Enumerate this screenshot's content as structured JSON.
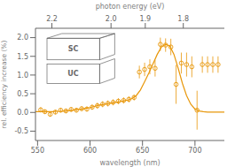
{
  "chart_data": {
    "type": "scatter",
    "xlabel": "wavelength (nm)",
    "ylabel": "rel. efficiency increase (%)",
    "x2label": "photon energy (eV)",
    "annotations": [
      "SC",
      "UC"
    ],
    "xlim": [
      548,
      728
    ],
    "xticks": [
      550,
      600,
      650,
      700
    ],
    "x2ticks": [
      2.2,
      {
        "value": 2.0,
        "label": "2.0"
      },
      1.9,
      1.8
    ],
    "ylim": [
      -0.75,
      2.25
    ],
    "yticks": [
      -0.5,
      {
        "value": 0.0,
        "label": "0.0"
      },
      0.5,
      {
        "value": 1.0,
        "label": "1.0"
      },
      1.5,
      {
        "value": 2.0,
        "label": "2.0"
      }
    ],
    "grid": false,
    "series": [
      {
        "type": "line",
        "color": "#e8970a",
        "x": [
          548,
          552,
          556,
          560,
          564,
          568,
          572,
          576,
          580,
          584,
          588,
          592,
          596,
          600,
          604,
          608,
          612,
          616,
          620,
          624,
          628,
          632,
          636,
          640,
          644,
          648,
          652,
          656,
          660,
          664,
          668,
          672,
          676,
          680,
          684,
          688,
          692,
          696,
          700,
          704,
          708,
          712,
          716,
          720,
          724,
          728
        ],
        "values": [
          0.02,
          0.02,
          0.02,
          0.02,
          0.02,
          0.03,
          0.03,
          0.04,
          0.05,
          0.06,
          0.08,
          0.09,
          0.11,
          0.13,
          0.16,
          0.19,
          0.21,
          0.23,
          0.25,
          0.27,
          0.29,
          0.31,
          0.33,
          0.37,
          0.45,
          0.6,
          0.82,
          1.05,
          1.3,
          1.55,
          1.75,
          1.82,
          1.78,
          1.55,
          1.18,
          0.78,
          0.45,
          0.22,
          0.09,
          0.04,
          0.02,
          0.01,
          0.01,
          0.01,
          0.01,
          0.01
        ]
      },
      {
        "type": "scatter",
        "color": "#e8970a",
        "marker": "circle",
        "x": [
          553,
          557,
          562,
          567,
          572,
          577,
          582,
          587,
          592,
          597,
          602,
          607,
          612,
          617,
          622,
          627,
          632,
          637,
          642,
          647,
          652,
          657,
          662,
          667,
          672,
          677,
          682,
          687,
          692,
          697,
          702,
          707,
          712,
          717,
          722
        ],
        "values": [
          0.07,
          0.02,
          -0.05,
          0.01,
          0.06,
          0.04,
          0.08,
          0.06,
          0.1,
          0.09,
          0.14,
          0.18,
          0.22,
          0.24,
          0.27,
          0.3,
          0.32,
          0.35,
          0.4,
          1.08,
          1.15,
          1.22,
          1.18,
          1.82,
          1.8,
          1.75,
          0.75,
          1.32,
          1.28,
          1.22,
          0.06,
          1.28,
          1.28,
          1.28,
          1.28
        ],
        "yerr": [
          0.07,
          0.06,
          0.06,
          0.06,
          0.06,
          0.06,
          0.06,
          0.06,
          0.06,
          0.07,
          0.07,
          0.08,
          0.08,
          0.08,
          0.08,
          0.08,
          0.08,
          0.08,
          0.08,
          0.17,
          0.18,
          0.2,
          0.22,
          0.18,
          0.18,
          0.22,
          0.52,
          0.28,
          0.32,
          0.28,
          0.52,
          0.22,
          0.22,
          0.22,
          0.22
        ]
      }
    ]
  }
}
